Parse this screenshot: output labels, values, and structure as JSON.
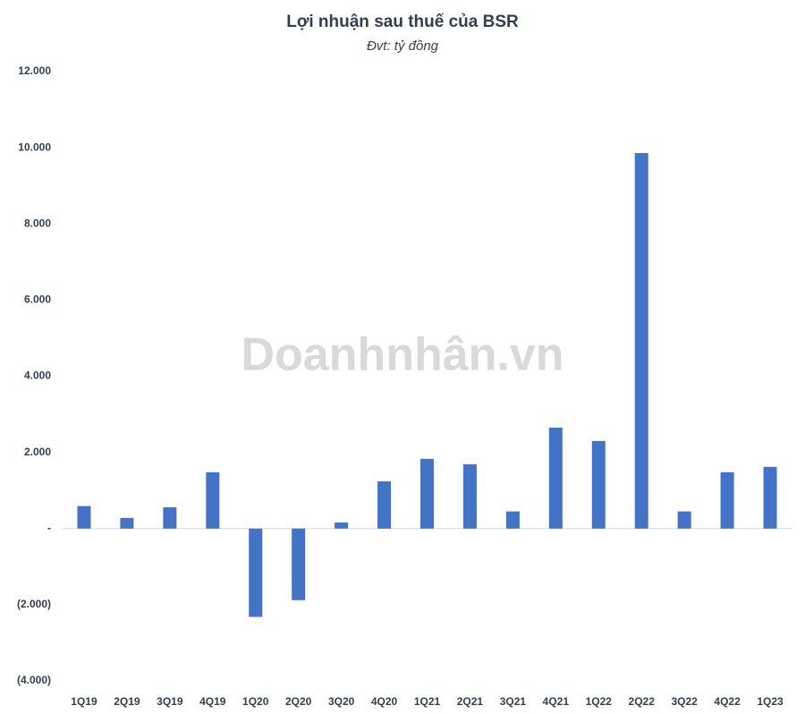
{
  "chart_data": {
    "type": "bar",
    "title": "Lợi nhuận sau thuế của BSR",
    "subtitle": "Đvt: tỷ đồng",
    "watermark": "Doanhnhân.vn",
    "categories": [
      "1Q19",
      "2Q19",
      "3Q19",
      "4Q19",
      "1Q20",
      "2Q20",
      "3Q20",
      "4Q20",
      "1Q21",
      "2Q21",
      "3Q21",
      "4Q21",
      "1Q22",
      "2Q22",
      "3Q22",
      "4Q22",
      "1Q23"
    ],
    "values": [
      590,
      280,
      560,
      1480,
      -2320,
      -1880,
      160,
      1240,
      1830,
      1690,
      450,
      2650,
      2300,
      9860,
      450,
      1480,
      1620
    ],
    "color": "#4472c4",
    "ylim": [
      -4000,
      12000
    ],
    "yticks": [
      {
        "value": -4000,
        "label": "(4.000)"
      },
      {
        "value": -2000,
        "label": "(2.000)"
      },
      {
        "value": 0,
        "label": "-"
      },
      {
        "value": 2000,
        "label": "2.000"
      },
      {
        "value": 4000,
        "label": "4.000"
      },
      {
        "value": 6000,
        "label": "6.000"
      },
      {
        "value": 8000,
        "label": "8.000"
      },
      {
        "value": 10000,
        "label": "10.000"
      },
      {
        "value": 12000,
        "label": "12.000"
      }
    ],
    "grid": false
  }
}
